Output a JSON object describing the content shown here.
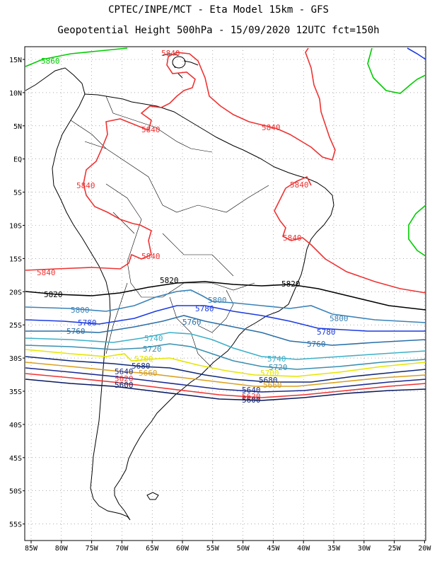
{
  "header": {
    "line1": "CPTEC/INPE/MCT -  Eta Model 15km - GFS",
    "line2": "Geopotential Height 500hPa - 15/09/2020 12UTC fct=150h"
  },
  "axes": {
    "lon_labels": [
      "85W",
      "80W",
      "75W",
      "70W",
      "65W",
      "60W",
      "55W",
      "50W",
      "45W",
      "40W",
      "35W",
      "30W",
      "25W",
      "20W"
    ],
    "lat_labels": [
      "15N",
      "10N",
      "5N",
      "EQ",
      "5S",
      "10S",
      "15S",
      "20S",
      "25S",
      "30S",
      "35S",
      "40S",
      "45S",
      "50S",
      "55S"
    ]
  },
  "contours": [
    {
      "value": "5860",
      "color": "#00cc00"
    },
    {
      "value": "5840",
      "color": "#ee3333"
    },
    {
      "value": "5820",
      "color": "#000000"
    },
    {
      "value": "5800",
      "color": "#3a82b8"
    },
    {
      "value": "5780",
      "color": "#1b3be0"
    },
    {
      "value": "5760",
      "color": "#2a6fa8"
    },
    {
      "value": "5740",
      "color": "#3cb0c8"
    },
    {
      "value": "5720",
      "color": "#3a8fb0"
    },
    {
      "value": "5700",
      "color": "#e6e600"
    },
    {
      "value": "5680",
      "color": "#102a78"
    },
    {
      "value": "5660",
      "color": "#d9a020"
    },
    {
      "value": "5640",
      "color": "#1b2a8f"
    },
    {
      "value": "5620",
      "color": "#ee3333"
    },
    {
      "value": "5600",
      "color": "#0a1a60"
    }
  ]
}
